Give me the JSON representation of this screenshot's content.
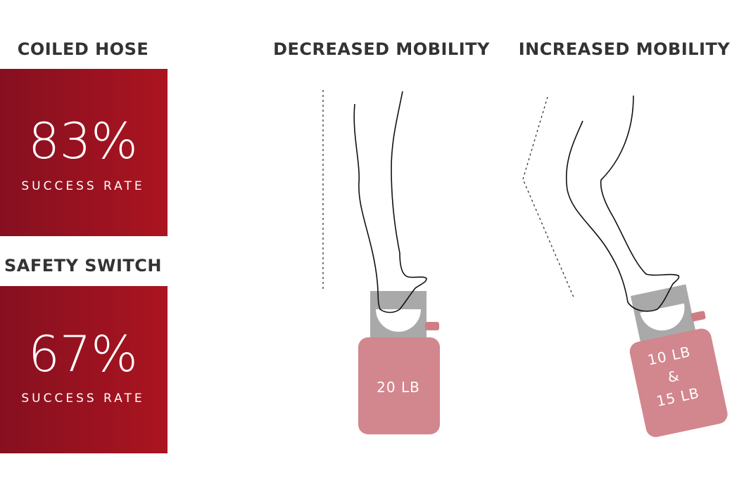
{
  "panels": [
    {
      "title": "COILED HOSE",
      "value": "83%",
      "caption": "SUCCESS RATE"
    },
    {
      "title": "SAFETY SWITCH",
      "value": "67%",
      "caption": "SUCCESS RATE"
    }
  ],
  "illustrations": [
    {
      "title": "DECREASED MOBILITY",
      "weight": [
        "20 LB"
      ]
    },
    {
      "title": "INCREASED MOBILITY",
      "weight": [
        "10 LB",
        "&",
        "15 LB"
      ]
    }
  ]
}
